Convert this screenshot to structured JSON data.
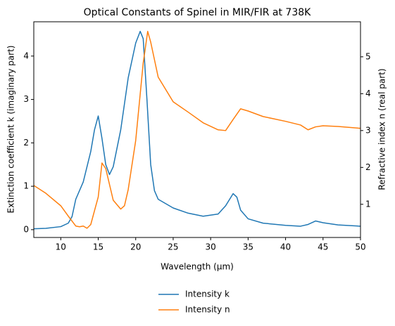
{
  "chart_data": {
    "type": "line",
    "title": "Optical Constants of Spinel in MIR/FIR at 738K",
    "x_label": "Wavelength (μm)",
    "y_label": "Extinction coefficient k (imaginary part)",
    "y2_label": "Refractive index n (real part)",
    "xlim": [
      6.4,
      50
    ],
    "xticks": [
      10,
      15,
      20,
      25,
      30,
      35,
      40,
      45,
      50
    ],
    "ylim": [
      -0.18,
      4.79
    ],
    "yticks": [
      0,
      1,
      2,
      3,
      4
    ],
    "y2lim": [
      0.1,
      5.95
    ],
    "y2ticks": [
      1,
      2,
      3,
      4,
      5
    ],
    "legend": "below",
    "series": [
      {
        "name": "Intensity k",
        "color": "#1f77b4",
        "x": [
          6.4,
          8,
          10,
          11,
          11.5,
          12,
          13,
          14,
          14.5,
          15,
          15.5,
          16,
          16.5,
          17,
          18,
          19,
          20,
          20.6,
          21,
          21.5,
          22,
          22.5,
          23,
          25,
          27,
          29,
          31,
          32,
          33,
          33.5,
          34,
          35,
          37,
          40,
          42,
          43,
          44,
          45,
          47,
          50
        ],
        "values": [
          0.02,
          0.03,
          0.07,
          0.15,
          0.3,
          0.7,
          1.1,
          1.8,
          2.3,
          2.62,
          2.1,
          1.5,
          1.27,
          1.45,
          2.3,
          3.5,
          4.3,
          4.57,
          4.4,
          3.0,
          1.5,
          0.9,
          0.7,
          0.5,
          0.38,
          0.31,
          0.36,
          0.55,
          0.83,
          0.75,
          0.45,
          0.25,
          0.15,
          0.1,
          0.08,
          0.12,
          0.2,
          0.16,
          0.11,
          0.08
        ]
      },
      {
        "name": "Intensity n",
        "color": "#ff7f0e",
        "axis": "y2",
        "x": [
          6.4,
          8,
          10,
          11,
          12,
          12.5,
          13,
          13.5,
          14,
          15,
          15.5,
          16,
          17,
          18,
          18.5,
          19,
          20,
          21,
          21.6,
          22,
          23,
          25,
          27,
          29,
          31,
          32,
          33,
          34,
          35,
          37,
          40,
          42,
          43,
          44,
          45,
          47,
          50
        ],
        "values": [
          1.51,
          1.3,
          0.96,
          0.68,
          0.41,
          0.39,
          0.41,
          0.35,
          0.45,
          1.2,
          2.12,
          1.97,
          1.11,
          0.87,
          0.96,
          1.4,
          2.73,
          4.83,
          5.69,
          5.4,
          4.45,
          3.78,
          3.5,
          3.21,
          3.02,
          3.0,
          3.3,
          3.59,
          3.53,
          3.38,
          3.25,
          3.15,
          3.02,
          3.1,
          3.13,
          3.11,
          3.06
        ]
      }
    ]
  }
}
